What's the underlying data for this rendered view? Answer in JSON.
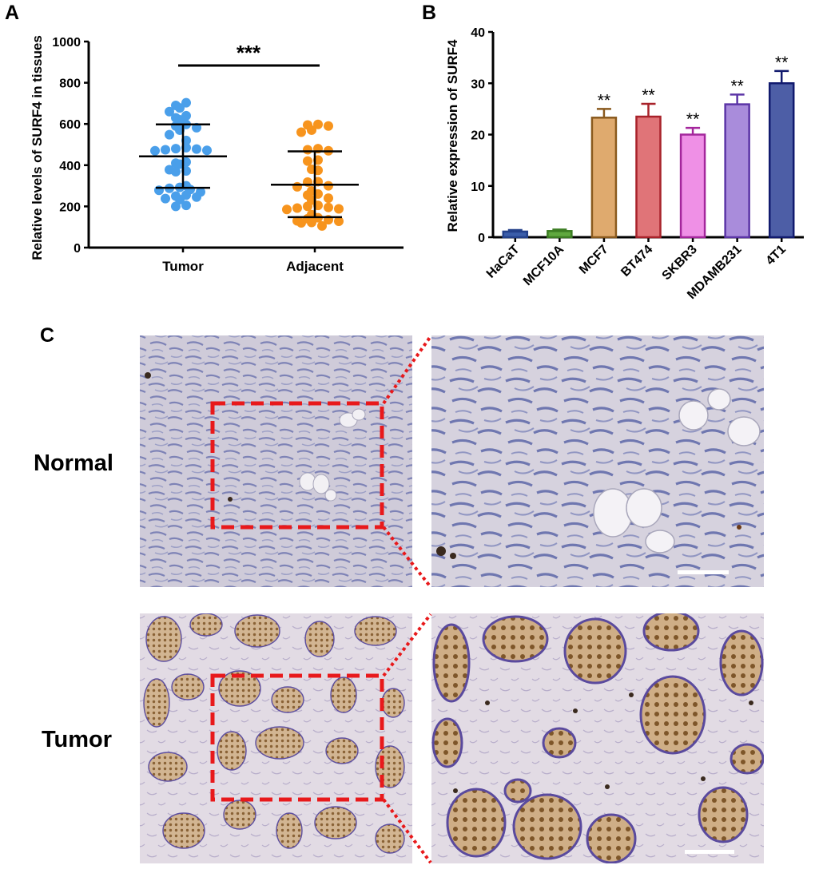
{
  "figure": {
    "panel_labels": {
      "a": "A",
      "b": "B",
      "c": "C"
    },
    "row_labels": {
      "normal": "Normal",
      "tumor": "Tumor"
    },
    "colors": {
      "tumor_dots": "#4a9fea",
      "adjacent_dots": "#f7941d",
      "zoom_box": "#e8191b"
    }
  },
  "chart_data": [
    {
      "panel": "A",
      "type": "scatter",
      "ylabel": "Relative levels of SURF4 in tissues",
      "xlabel": "",
      "categories": [
        "Tumor",
        "Adjacent"
      ],
      "ylim": [
        0,
        1000
      ],
      "yticks": [
        "0",
        "200",
        "400",
        "600",
        "800",
        "1000"
      ],
      "significance": "***",
      "summary": [
        {
          "category": "Tumor",
          "mean": 443,
          "upper": 598,
          "lower": 290
        },
        {
          "category": "Adjacent",
          "mean": 305,
          "upper": 467,
          "lower": 148
        }
      ],
      "series": [
        {
          "name": "Tumor",
          "color": "#4a9fea",
          "values": [
            703,
            690,
            678,
            660,
            640,
            630,
            620,
            598,
            590,
            582,
            570,
            548,
            520,
            485,
            480,
            478,
            475,
            472,
            470,
            415,
            410,
            405,
            378,
            372,
            368,
            300,
            292,
            288,
            282,
            278,
            270,
            255,
            250,
            245,
            238,
            233,
            205,
            200
          ]
        },
        {
          "name": "Adjacent",
          "color": "#f7941d",
          "values": [
            598,
            595,
            590,
            570,
            560,
            480,
            475,
            470,
            425,
            420,
            380,
            375,
            320,
            318,
            300,
            295,
            275,
            260,
            255,
            240,
            230,
            205,
            200,
            195,
            192,
            188,
            185,
            160,
            145,
            140,
            135,
            130,
            128,
            122,
            120,
            105
          ]
        }
      ]
    },
    {
      "panel": "B",
      "type": "bar",
      "ylabel": "Relative expression of SURF4",
      "xlabel": "",
      "categories": [
        "HaCaT",
        "MCF10A",
        "MCF7",
        "BT474",
        "SKBR3",
        "MDAMB231",
        "4T1"
      ],
      "values": [
        1.1,
        1.2,
        23.3,
        23.5,
        20.0,
        25.9,
        30.0
      ],
      "errors": [
        0.3,
        0.3,
        1.7,
        2.5,
        1.3,
        1.9,
        2.4
      ],
      "significance": [
        "",
        "",
        "**",
        "**",
        "**",
        "**",
        "**"
      ],
      "fill_colors": [
        "#3b5eaa",
        "#5fa83e",
        "#dfaa6e",
        "#e07478",
        "#ef90e6",
        "#a98cdb",
        "#4d5ea6"
      ],
      "edge_colors": [
        "#24418a",
        "#3c7d23",
        "#8a5a1e",
        "#a8222a",
        "#a4269c",
        "#5b34a6",
        "#111a6e"
      ],
      "ylim": [
        0,
        40
      ],
      "yticks": [
        "0",
        "10",
        "20",
        "30",
        "40"
      ]
    }
  ]
}
